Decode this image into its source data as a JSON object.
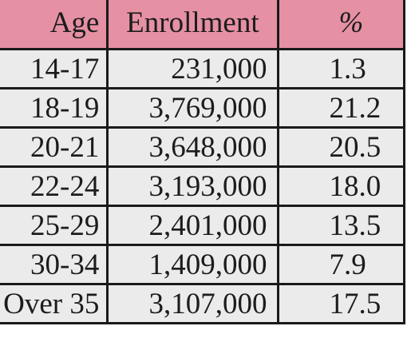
{
  "chart_data": {
    "type": "table",
    "columns": [
      "Age",
      "Enrollment",
      "%"
    ],
    "rows": [
      {
        "age": "14-17",
        "enrollment": "231,000",
        "percent": "1.3"
      },
      {
        "age": "18-19",
        "enrollment": "3,769,000",
        "percent": "21.2"
      },
      {
        "age": "20-21",
        "enrollment": "3,648,000",
        "percent": "20.5"
      },
      {
        "age": "22-24",
        "enrollment": "3,193,000",
        "percent": "18.0"
      },
      {
        "age": "25-29",
        "enrollment": "2,401,000",
        "percent": "13.5"
      },
      {
        "age": "30-34",
        "enrollment": "1,409,000",
        "percent": "7.9"
      },
      {
        "age": "Over 35",
        "enrollment": "3,107,000",
        "percent": "17.5"
      }
    ]
  },
  "colors": {
    "header_bg": "#e590a3",
    "cell_bg": "#ebebeb",
    "border": "#1a1a1a"
  }
}
